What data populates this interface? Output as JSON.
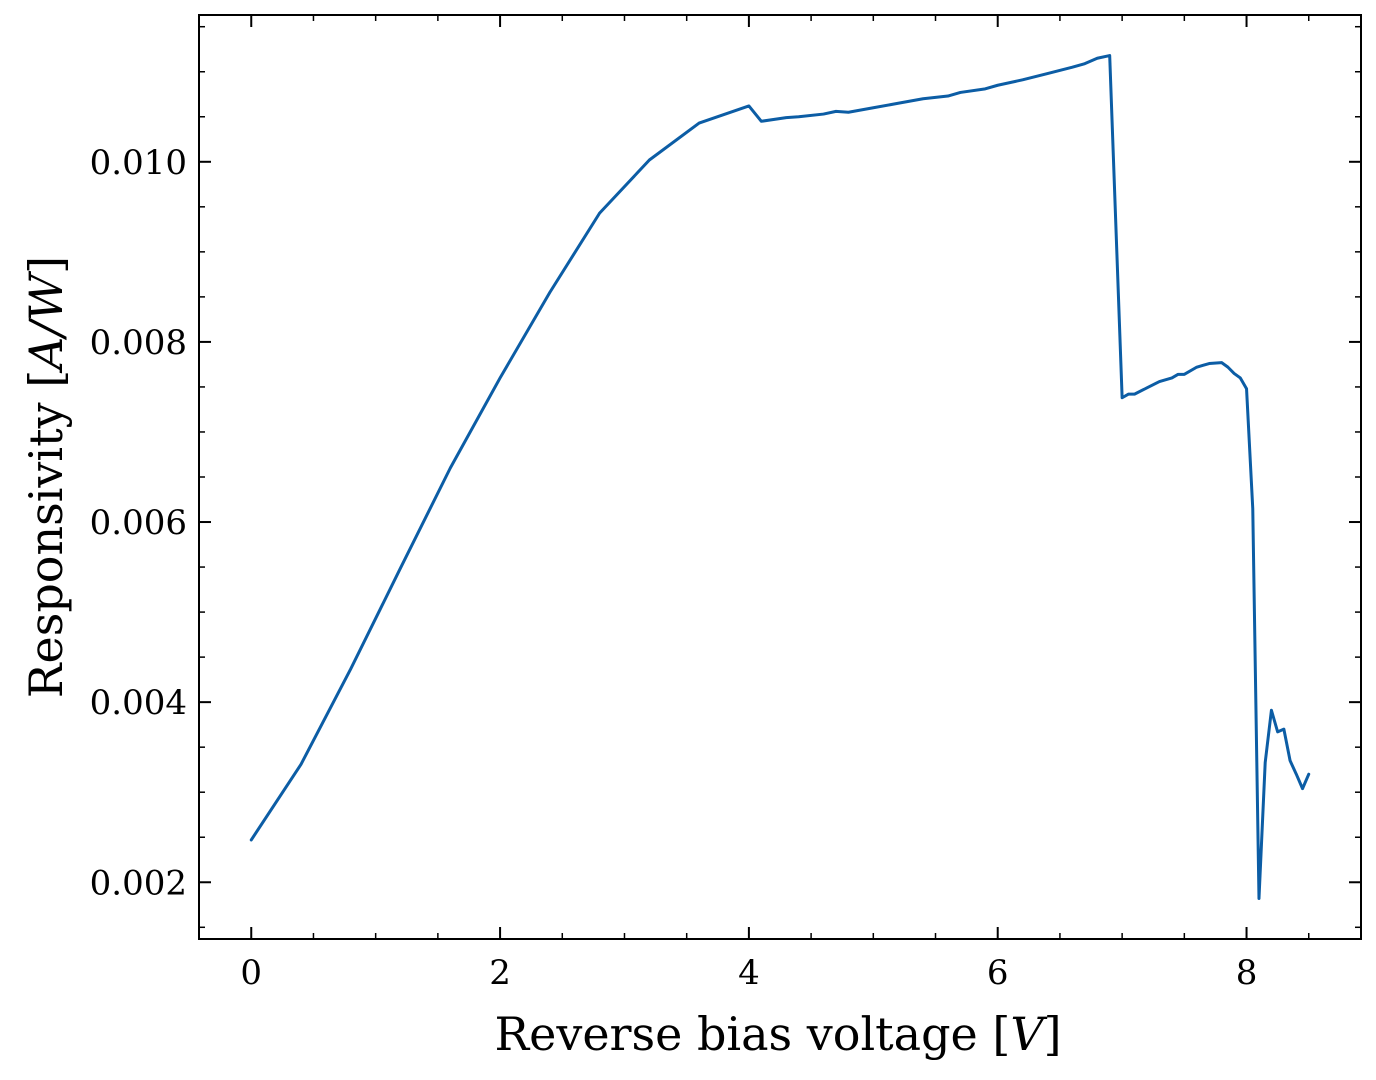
{
  "chart_data": {
    "type": "line",
    "title": "",
    "xlabel": "Reverse bias voltage [V]",
    "ylabel": "Responsivity [A/W]",
    "xlabel_parts": {
      "text": "Reverse bias voltage ",
      "open": "[",
      "unit": "V",
      "close": "]"
    },
    "ylabel_parts": {
      "text": "Responsivity ",
      "open": "[",
      "unit": "A/W",
      "close": "]"
    },
    "xlim": [
      -0.42,
      8.92
    ],
    "ylim": [
      0.00137,
      0.01163
    ],
    "xticks": [
      0,
      2,
      4,
      6,
      8
    ],
    "xtick_labels": [
      "0",
      "2",
      "4",
      "6",
      "8"
    ],
    "yticks": [
      0.002,
      0.004,
      0.006,
      0.008,
      0.01
    ],
    "ytick_labels": [
      "0.002",
      "0.004",
      "0.006",
      "0.008",
      "0.010"
    ],
    "x_minor_step": 0.5,
    "y_minor_step": 0.0005,
    "ticks_direction": "in",
    "ticks_all_sides": true,
    "grid": false,
    "legend": "none",
    "colors": {
      "line": "#0C5DA5",
      "axes": "#000000",
      "background": "#ffffff"
    },
    "series": [
      {
        "x": [
          0.0,
          0.4,
          0.8,
          1.2,
          1.6,
          2.0,
          2.4,
          2.8,
          3.2,
          3.6,
          4.0,
          4.1,
          4.3,
          4.4,
          4.6,
          4.7,
          4.8,
          5.0,
          5.2,
          5.4,
          5.6,
          5.7,
          5.9,
          6.0,
          6.2,
          6.4,
          6.6,
          6.7,
          6.8,
          6.9,
          7.0,
          7.05,
          7.1,
          7.2,
          7.3,
          7.4,
          7.45,
          7.5,
          7.6,
          7.65,
          7.7,
          7.8,
          7.85,
          7.9,
          7.95,
          8.0,
          8.05,
          8.1,
          8.15,
          8.2,
          8.25,
          8.3,
          8.35,
          8.4,
          8.45,
          8.5
        ],
        "y": [
          0.00247,
          0.00331,
          0.00437,
          0.00549,
          0.0066,
          0.0076,
          0.00855,
          0.00943,
          0.01002,
          0.01043,
          0.01062,
          0.01045,
          0.01049,
          0.0105,
          0.01053,
          0.01056,
          0.01055,
          0.0106,
          0.01065,
          0.0107,
          0.01073,
          0.01077,
          0.01081,
          0.01085,
          0.01091,
          0.01098,
          0.01105,
          0.01109,
          0.01115,
          0.01118,
          0.00738,
          0.00742,
          0.00742,
          0.00749,
          0.00756,
          0.0076,
          0.00764,
          0.00764,
          0.00772,
          0.00774,
          0.00776,
          0.00777,
          0.00772,
          0.00765,
          0.0076,
          0.00748,
          0.00615,
          0.00182,
          0.00333,
          0.00391,
          0.00367,
          0.0037,
          0.00335,
          0.0032,
          0.00304,
          0.0032
        ]
      }
    ]
  }
}
